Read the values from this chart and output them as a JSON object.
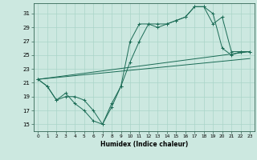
{
  "title": "",
  "xlabel": "Humidex (Indice chaleur)",
  "background_color": "#cce8e0",
  "grid_color": "#aad4c8",
  "line_color": "#1a6b55",
  "xlim": [
    -0.5,
    23.5
  ],
  "ylim": [
    14.0,
    32.5
  ],
  "yticks": [
    15,
    17,
    19,
    21,
    23,
    25,
    27,
    29,
    31
  ],
  "xticks": [
    0,
    1,
    2,
    3,
    4,
    5,
    6,
    7,
    8,
    9,
    10,
    11,
    12,
    13,
    14,
    15,
    16,
    17,
    18,
    19,
    20,
    21,
    22,
    23
  ],
  "line1_x": [
    0,
    1,
    2,
    3,
    4,
    5,
    6,
    7,
    8,
    9,
    10,
    11,
    12,
    13,
    14,
    15,
    16,
    17,
    18,
    19,
    20,
    21,
    22,
    23
  ],
  "line1_y": [
    21.5,
    20.5,
    18.5,
    19.5,
    18.0,
    17.0,
    15.5,
    15.0,
    17.5,
    20.5,
    27.0,
    29.5,
    29.5,
    29.0,
    29.5,
    30.0,
    30.5,
    32.0,
    32.0,
    31.0,
    26.0,
    25.0,
    25.5,
    25.5
  ],
  "line2_x": [
    0,
    1,
    2,
    3,
    4,
    5,
    6,
    7,
    8,
    9,
    10,
    11,
    12,
    13,
    14,
    15,
    16,
    17,
    18,
    19,
    20,
    21,
    22,
    23
  ],
  "line2_y": [
    21.5,
    20.5,
    18.5,
    19.0,
    19.0,
    18.5,
    17.0,
    15.0,
    18.0,
    20.5,
    24.0,
    27.0,
    29.5,
    29.5,
    29.5,
    30.0,
    30.5,
    32.0,
    32.0,
    29.5,
    30.5,
    25.5,
    25.5,
    25.5
  ],
  "line3_x": [
    0,
    23
  ],
  "line3_y": [
    21.5,
    25.5
  ],
  "line4_x": [
    0,
    23
  ],
  "line4_y": [
    21.5,
    24.5
  ]
}
